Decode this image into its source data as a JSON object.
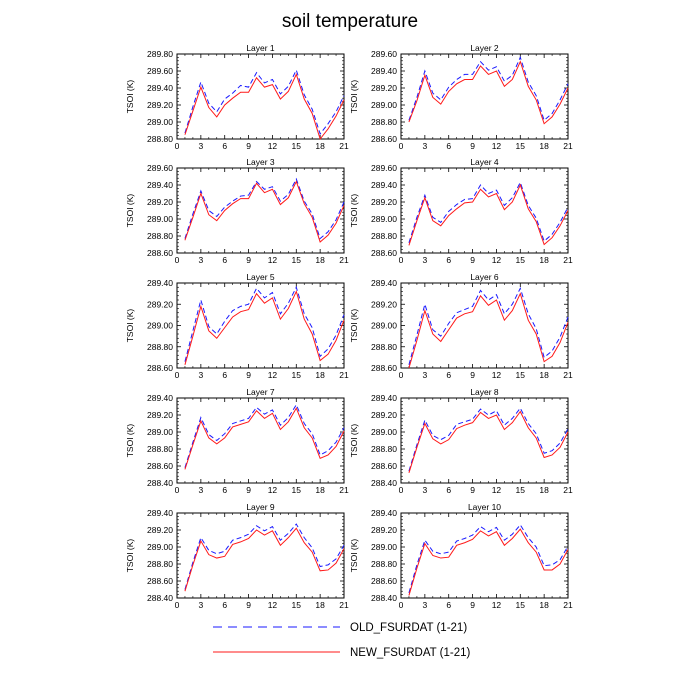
{
  "title": "soil temperature",
  "legend": [
    {
      "label": "OLD_FSURDAT (1-21)",
      "color": "#1a1aff",
      "dash": true
    },
    {
      "label": "NEW_FSURDAT (1-21)",
      "color": "#ff1a1a",
      "dash": false
    }
  ],
  "chart_data": [
    {
      "type": "line",
      "title": "Layer 1",
      "ylabel": "TSOI (K)",
      "xlim": [
        0,
        21
      ],
      "xticks": [
        0,
        3,
        6,
        9,
        12,
        15,
        18,
        21
      ],
      "ylim": [
        288.8,
        289.8
      ],
      "yticks": [
        "288.80",
        "289.00",
        "289.20",
        "289.40",
        "289.60",
        "289.80"
      ],
      "x": [
        1,
        2,
        3,
        4,
        5,
        6,
        7,
        8,
        9,
        10,
        11,
        12,
        13,
        14,
        15,
        16,
        17,
        18,
        19,
        20,
        21
      ],
      "series": [
        {
          "name": "OLD_FSURDAT (1-21)",
          "values": [
            288.87,
            289.18,
            289.47,
            289.22,
            289.12,
            289.27,
            289.34,
            289.43,
            289.41,
            289.58,
            289.46,
            289.5,
            289.33,
            289.42,
            289.61,
            289.32,
            289.15,
            288.86,
            288.98,
            289.12,
            289.31
          ]
        },
        {
          "name": "NEW_FSURDAT (1-21)",
          "values": [
            288.85,
            289.13,
            289.41,
            289.17,
            289.06,
            289.2,
            289.28,
            289.35,
            289.35,
            289.52,
            289.41,
            289.44,
            289.27,
            289.36,
            289.56,
            289.27,
            289.1,
            288.8,
            288.92,
            289.07,
            289.26
          ]
        }
      ]
    },
    {
      "type": "line",
      "title": "Layer 2",
      "ylabel": "TSOI (K)",
      "xlim": [
        0,
        21
      ],
      "xticks": [
        0,
        3,
        6,
        9,
        12,
        15,
        18,
        21
      ],
      "ylim": [
        288.6,
        289.6
      ],
      "yticks": [
        "288.60",
        "288.80",
        "289.00",
        "289.20",
        "289.40",
        "289.60"
      ],
      "x": [
        1,
        2,
        3,
        4,
        5,
        6,
        7,
        8,
        9,
        10,
        11,
        12,
        13,
        14,
        15,
        16,
        17,
        18,
        19,
        20,
        21
      ],
      "series": [
        {
          "name": "OLD_FSURDAT (1-21)",
          "values": [
            288.82,
            289.09,
            289.4,
            289.14,
            289.06,
            289.21,
            289.3,
            289.36,
            289.36,
            289.51,
            289.41,
            289.45,
            289.28,
            289.35,
            289.56,
            289.27,
            289.11,
            288.82,
            288.9,
            289.06,
            289.25
          ]
        },
        {
          "name": "NEW_FSURDAT (1-21)",
          "values": [
            288.8,
            289.05,
            289.35,
            289.09,
            289.01,
            289.16,
            289.25,
            289.3,
            289.3,
            289.46,
            289.36,
            289.4,
            289.22,
            289.3,
            289.51,
            289.22,
            289.06,
            288.78,
            288.86,
            289.01,
            289.2
          ]
        }
      ]
    },
    {
      "type": "line",
      "title": "Layer 3",
      "ylabel": "TSOI (K)",
      "xlim": [
        0,
        21
      ],
      "xticks": [
        0,
        3,
        6,
        9,
        12,
        15,
        18,
        21
      ],
      "ylim": [
        288.6,
        289.6
      ],
      "yticks": [
        "288.60",
        "288.80",
        "289.00",
        "289.20",
        "289.40",
        "289.60"
      ],
      "x": [
        1,
        2,
        3,
        4,
        5,
        6,
        7,
        8,
        9,
        10,
        11,
        12,
        13,
        14,
        15,
        16,
        17,
        18,
        19,
        20,
        21
      ],
      "series": [
        {
          "name": "OLD_FSURDAT (1-21)",
          "values": [
            288.77,
            289.06,
            289.33,
            289.1,
            289.03,
            289.14,
            289.21,
            289.27,
            289.28,
            289.44,
            289.35,
            289.38,
            289.21,
            289.29,
            289.47,
            289.21,
            289.06,
            288.77,
            288.85,
            288.99,
            289.2
          ]
        },
        {
          "name": "NEW_FSURDAT (1-21)",
          "values": [
            288.75,
            289.02,
            289.3,
            289.05,
            288.98,
            289.1,
            289.18,
            289.24,
            289.24,
            289.42,
            289.31,
            289.35,
            289.17,
            289.25,
            289.44,
            289.18,
            289.02,
            288.73,
            288.81,
            288.95,
            289.16
          ]
        }
      ]
    },
    {
      "type": "line",
      "title": "Layer 4",
      "ylabel": "TSOI (K)",
      "xlim": [
        0,
        21
      ],
      "xticks": [
        0,
        3,
        6,
        9,
        12,
        15,
        18,
        21
      ],
      "ylim": [
        288.6,
        289.6
      ],
      "yticks": [
        "288.60",
        "288.80",
        "289.00",
        "289.20",
        "289.40",
        "289.60"
      ],
      "x": [
        1,
        2,
        3,
        4,
        5,
        6,
        7,
        8,
        9,
        10,
        11,
        12,
        13,
        14,
        15,
        16,
        17,
        18,
        19,
        20,
        21
      ],
      "series": [
        {
          "name": "OLD_FSURDAT (1-21)",
          "values": [
            288.72,
            289.02,
            289.28,
            289.02,
            288.96,
            289.09,
            289.17,
            289.23,
            289.24,
            289.4,
            289.3,
            289.34,
            289.16,
            289.25,
            289.43,
            289.16,
            289.01,
            288.74,
            288.82,
            288.96,
            289.14
          ]
        },
        {
          "name": "NEW_FSURDAT (1-21)",
          "values": [
            288.69,
            288.98,
            289.25,
            288.98,
            288.92,
            289.04,
            289.12,
            289.19,
            289.2,
            289.35,
            289.26,
            289.3,
            289.11,
            289.2,
            289.4,
            289.12,
            288.97,
            288.7,
            288.78,
            288.92,
            289.1
          ]
        }
      ]
    },
    {
      "type": "line",
      "title": "Layer 5",
      "ylabel": "TSOI (K)",
      "xlim": [
        0,
        21
      ],
      "xticks": [
        0,
        3,
        6,
        9,
        12,
        15,
        18,
        21
      ],
      "ylim": [
        288.6,
        289.4
      ],
      "yticks": [
        "288.60",
        "288.80",
        "289.00",
        "289.20",
        "289.40"
      ],
      "x": [
        1,
        2,
        3,
        4,
        5,
        6,
        7,
        8,
        9,
        10,
        11,
        12,
        13,
        14,
        15,
        16,
        17,
        18,
        19,
        20,
        21
      ],
      "series": [
        {
          "name": "OLD_FSURDAT (1-21)",
          "values": [
            288.66,
            288.95,
            289.24,
            288.99,
            288.92,
            289.04,
            289.14,
            289.18,
            289.2,
            289.35,
            289.26,
            289.31,
            289.11,
            289.21,
            289.36,
            289.11,
            288.98,
            288.71,
            288.78,
            288.91,
            289.1
          ]
        },
        {
          "name": "NEW_FSURDAT (1-21)",
          "values": [
            288.63,
            288.9,
            289.18,
            288.95,
            288.88,
            288.98,
            289.08,
            289.13,
            289.15,
            289.3,
            289.21,
            289.26,
            289.06,
            289.16,
            289.32,
            289.06,
            288.92,
            288.67,
            288.73,
            288.86,
            289.05
          ]
        }
      ]
    },
    {
      "type": "line",
      "title": "Layer 6",
      "ylabel": "TSOI (K)",
      "xlim": [
        0,
        21
      ],
      "xticks": [
        0,
        3,
        6,
        9,
        12,
        15,
        18,
        21
      ],
      "ylim": [
        288.6,
        289.4
      ],
      "yticks": [
        "288.60",
        "288.80",
        "289.00",
        "289.20",
        "289.40"
      ],
      "x": [
        1,
        2,
        3,
        4,
        5,
        6,
        7,
        8,
        9,
        10,
        11,
        12,
        13,
        14,
        15,
        16,
        17,
        18,
        19,
        20,
        21
      ],
      "series": [
        {
          "name": "OLD_FSURDAT (1-21)",
          "values": [
            288.63,
            288.91,
            289.2,
            288.96,
            288.9,
            289.02,
            289.12,
            289.15,
            289.18,
            289.33,
            289.24,
            289.29,
            289.11,
            289.2,
            289.35,
            289.11,
            288.97,
            288.7,
            288.76,
            288.89,
            289.08
          ]
        },
        {
          "name": "NEW_FSURDAT (1-21)",
          "values": [
            288.6,
            288.86,
            289.14,
            288.92,
            288.85,
            288.96,
            289.07,
            289.11,
            289.13,
            289.28,
            289.19,
            289.24,
            289.05,
            289.14,
            289.3,
            289.05,
            288.92,
            288.66,
            288.71,
            288.84,
            289.03
          ]
        }
      ]
    },
    {
      "type": "line",
      "title": "Layer 7",
      "ylabel": "TSOI (K)",
      "xlim": [
        0,
        21
      ],
      "xticks": [
        0,
        3,
        6,
        9,
        12,
        15,
        18,
        21
      ],
      "ylim": [
        288.4,
        289.4
      ],
      "yticks": [
        "288.40",
        "288.60",
        "288.80",
        "289.00",
        "289.20",
        "289.40"
      ],
      "x": [
        1,
        2,
        3,
        4,
        5,
        6,
        7,
        8,
        9,
        10,
        11,
        12,
        13,
        14,
        15,
        16,
        17,
        18,
        19,
        20,
        21
      ],
      "series": [
        {
          "name": "OLD_FSURDAT (1-21)",
          "values": [
            288.58,
            288.88,
            289.17,
            288.97,
            288.9,
            288.98,
            289.1,
            289.13,
            289.16,
            289.29,
            289.21,
            289.26,
            289.08,
            289.17,
            289.32,
            289.1,
            288.98,
            288.73,
            288.78,
            288.88,
            289.05
          ]
        },
        {
          "name": "NEW_FSURDAT (1-21)",
          "values": [
            288.56,
            288.85,
            289.13,
            288.93,
            288.86,
            288.93,
            289.06,
            289.09,
            289.12,
            289.25,
            289.16,
            289.22,
            289.03,
            289.12,
            289.28,
            289.05,
            288.93,
            288.69,
            288.73,
            288.83,
            289.01
          ]
        }
      ]
    },
    {
      "type": "line",
      "title": "Layer 8",
      "ylabel": "TSOI (K)",
      "xlim": [
        0,
        21
      ],
      "xticks": [
        0,
        3,
        6,
        9,
        12,
        15,
        18,
        21
      ],
      "ylim": [
        288.4,
        289.4
      ],
      "yticks": [
        "288.40",
        "288.60",
        "288.80",
        "289.00",
        "289.20",
        "289.40"
      ],
      "x": [
        1,
        2,
        3,
        4,
        5,
        6,
        7,
        8,
        9,
        10,
        11,
        12,
        13,
        14,
        15,
        16,
        17,
        18,
        19,
        20,
        21
      ],
      "series": [
        {
          "name": "OLD_FSURDAT (1-21)",
          "values": [
            288.54,
            288.85,
            289.14,
            288.96,
            288.91,
            288.96,
            289.09,
            289.12,
            289.15,
            289.27,
            289.2,
            289.25,
            289.08,
            289.16,
            289.28,
            289.1,
            288.98,
            288.75,
            288.78,
            288.87,
            289.04
          ]
        },
        {
          "name": "NEW_FSURDAT (1-21)",
          "values": [
            288.52,
            288.82,
            289.1,
            288.92,
            288.86,
            288.91,
            289.04,
            289.08,
            289.11,
            289.23,
            289.16,
            289.2,
            289.03,
            289.11,
            289.24,
            289.05,
            288.93,
            288.7,
            288.73,
            288.82,
            289.0
          ]
        }
      ]
    },
    {
      "type": "line",
      "title": "Layer 9",
      "ylabel": "TSOI (K)",
      "xlim": [
        0,
        21
      ],
      "xticks": [
        0,
        3,
        6,
        9,
        12,
        15,
        18,
        21
      ],
      "ylim": [
        288.4,
        289.4
      ],
      "yticks": [
        "288.40",
        "288.60",
        "288.80",
        "289.00",
        "289.20",
        "289.40"
      ],
      "x": [
        1,
        2,
        3,
        4,
        5,
        6,
        7,
        8,
        9,
        10,
        11,
        12,
        13,
        14,
        15,
        16,
        17,
        18,
        19,
        20,
        21
      ],
      "series": [
        {
          "name": "OLD_FSURDAT (1-21)",
          "values": [
            288.5,
            288.82,
            289.11,
            288.96,
            288.92,
            288.95,
            289.08,
            289.11,
            289.15,
            289.25,
            289.19,
            289.24,
            289.08,
            289.16,
            289.27,
            289.11,
            288.99,
            288.77,
            288.79,
            288.86,
            289.02
          ]
        },
        {
          "name": "NEW_FSURDAT (1-21)",
          "values": [
            288.48,
            288.79,
            289.07,
            288.91,
            288.87,
            288.89,
            289.03,
            289.06,
            289.1,
            289.2,
            289.14,
            289.19,
            289.02,
            289.11,
            289.22,
            289.05,
            288.94,
            288.72,
            288.73,
            288.81,
            288.98
          ]
        }
      ]
    },
    {
      "type": "line",
      "title": "Layer 10",
      "ylabel": "TSOI (K)",
      "xlim": [
        0,
        21
      ],
      "xticks": [
        0,
        3,
        6,
        9,
        12,
        15,
        18,
        21
      ],
      "ylim": [
        288.4,
        289.4
      ],
      "yticks": [
        "288.40",
        "288.60",
        "288.80",
        "289.00",
        "289.20",
        "289.40"
      ],
      "x": [
        1,
        2,
        3,
        4,
        5,
        6,
        7,
        8,
        9,
        10,
        11,
        12,
        13,
        14,
        15,
        16,
        17,
        18,
        19,
        20,
        21
      ],
      "series": [
        {
          "name": "OLD_FSURDAT (1-21)",
          "values": [
            288.46,
            288.79,
            289.08,
            288.95,
            288.92,
            288.94,
            289.07,
            289.1,
            289.14,
            289.24,
            289.18,
            289.23,
            289.08,
            289.15,
            289.26,
            289.11,
            289.0,
            288.78,
            288.79,
            288.85,
            289.01
          ]
        },
        {
          "name": "NEW_FSURDAT (1-21)",
          "values": [
            288.43,
            288.75,
            289.04,
            288.9,
            288.87,
            288.88,
            289.02,
            289.05,
            289.09,
            289.19,
            289.13,
            289.18,
            289.02,
            289.1,
            289.21,
            289.05,
            288.94,
            288.73,
            288.73,
            288.8,
            288.97
          ]
        }
      ]
    }
  ]
}
